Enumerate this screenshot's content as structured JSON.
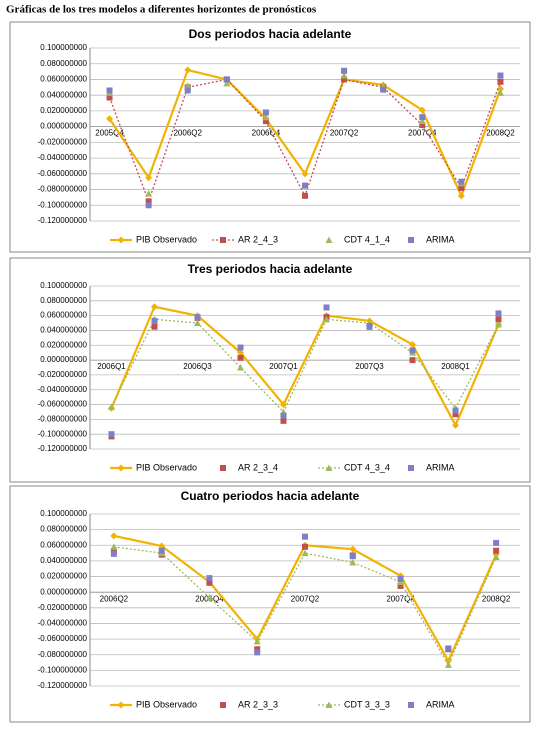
{
  "page_title": "Gráficas de los tres modelos a diferentes horizontes de pronósticos",
  "chart_data": [
    {
      "type": "line",
      "title": "Dos periodos hacia adelante",
      "categories": [
        "2005Q4",
        null,
        "2006Q2",
        null,
        "2006Q4",
        null,
        "2007Q2",
        null,
        "2007Q4",
        null,
        "2008Q2"
      ],
      "series": [
        {
          "name": "PIB Observado",
          "color": "#f2b200",
          "line_style": "solid",
          "marker": "diamond",
          "values": [
            0.01,
            -0.065,
            0.072,
            0.06,
            0.01,
            -0.06,
            0.06,
            0.053,
            0.021,
            -0.088,
            0.048
          ]
        },
        {
          "name": "AR 2_4_3",
          "color": "#c0504d",
          "line_style": "dotted",
          "marker": "square",
          "values": [
            0.037,
            -0.095,
            0.05,
            0.06,
            0.007,
            -0.088,
            0.06,
            0.05,
            0.002,
            -0.078,
            0.057
          ]
        },
        {
          "name": "CDT 4_1_4",
          "color": "#9bbb59",
          "line_style": "none",
          "marker": "triangle",
          "values": [
            0.043,
            -0.085,
            0.052,
            0.055,
            0.012,
            -0.075,
            0.065,
            0.052,
            0.007,
            -0.072,
            0.043
          ]
        },
        {
          "name": "ARIMA",
          "color": "#7f7fc8",
          "line_style": "none",
          "marker": "square",
          "values": [
            0.046,
            -0.1,
            0.046,
            0.06,
            0.018,
            -0.075,
            0.071,
            0.047,
            0.012,
            -0.07,
            0.065
          ]
        }
      ],
      "ylim": [
        -0.12,
        0.1
      ],
      "yticks": [
        {
          "value": 0.1,
          "label": "0.100000000"
        },
        {
          "value": 0.08,
          "label": "0.080000000"
        },
        {
          "value": 0.06,
          "label": "0.060000000"
        },
        {
          "value": 0.04,
          "label": "0.040000000"
        },
        {
          "value": 0.02,
          "label": "0.020000000"
        },
        {
          "value": 0,
          "label": "0.000000000"
        },
        {
          "value": -0.02,
          "label": "-0.020000000"
        },
        {
          "value": -0.04,
          "label": "-0.040000000"
        },
        {
          "value": -0.06,
          "label": "-0.060000000"
        },
        {
          "value": -0.08,
          "label": "-0.080000000"
        },
        {
          "value": -0.1,
          "label": "-0.100000000"
        },
        {
          "value": -0.12,
          "label": "-0.120000000"
        }
      ],
      "grid": true,
      "legend": "bottom"
    },
    {
      "type": "line",
      "title": "Tres periodos hacia adelante",
      "categories": [
        "2006Q1",
        null,
        "2006Q3",
        null,
        "2007Q1",
        null,
        "2007Q3",
        null,
        "2008Q1",
        null
      ],
      "series": [
        {
          "name": "PIB Observado",
          "color": "#f2b200",
          "line_style": "solid",
          "marker": "diamond",
          "values": [
            -0.065,
            0.072,
            0.06,
            0.01,
            -0.06,
            0.06,
            0.053,
            0.021,
            -0.088,
            0.048
          ]
        },
        {
          "name": "AR 2_3_4",
          "color": "#c0504d",
          "line_style": "none",
          "marker": "square",
          "values": [
            -0.103,
            0.045,
            0.057,
            0.003,
            -0.082,
            0.058,
            0.045,
            0.0,
            -0.073,
            0.055
          ]
        },
        {
          "name": "CDT 4_3_4",
          "color": "#9bbb59",
          "line_style": "dotted",
          "marker": "triangle",
          "values": [
            -0.063,
            0.055,
            0.05,
            -0.01,
            -0.07,
            0.055,
            0.05,
            0.01,
            -0.065,
            0.048
          ]
        },
        {
          "name": "ARIMA",
          "color": "#7f7fc8",
          "line_style": "none",
          "marker": "square",
          "values": [
            -0.1,
            0.053,
            0.058,
            0.017,
            -0.075,
            0.071,
            0.046,
            0.013,
            -0.068,
            0.063
          ]
        }
      ],
      "ylim": [
        -0.12,
        0.1
      ],
      "yticks": [
        {
          "value": 0.1,
          "label": "0.100000000"
        },
        {
          "value": 0.08,
          "label": "0.080000000"
        },
        {
          "value": 0.06,
          "label": "0.060000000"
        },
        {
          "value": 0.04,
          "label": "0.040000000"
        },
        {
          "value": 0.02,
          "label": "0.020000000"
        },
        {
          "value": 0,
          "label": "0.000000000"
        },
        {
          "value": -0.02,
          "label": "-0.020000000"
        },
        {
          "value": -0.04,
          "label": "-0.040000000"
        },
        {
          "value": -0.06,
          "label": "-0.060000000"
        },
        {
          "value": -0.08,
          "label": "-0.080000000"
        },
        {
          "value": -0.1,
          "label": "-0.100000000"
        },
        {
          "value": -0.12,
          "label": "-0.120000000"
        }
      ],
      "grid": true,
      "legend": "bottom"
    },
    {
      "type": "line",
      "title": "Cuatro periodos hacia adelante",
      "categories": [
        "2006Q2",
        null,
        "2006Q4",
        null,
        "2007Q2",
        null,
        "2007Q4",
        null,
        "2008Q2"
      ],
      "series": [
        {
          "name": "PIB Observado",
          "color": "#f2b200",
          "line_style": "solid",
          "marker": "diamond",
          "values": [
            0.072,
            0.059,
            0.013,
            -0.06,
            0.06,
            0.055,
            0.021,
            -0.088,
            0.048
          ]
        },
        {
          "name": "AR 2_3_3",
          "color": "#c0504d",
          "line_style": "none",
          "marker": "square",
          "values": [
            0.053,
            0.048,
            0.012,
            -0.073,
            0.058,
            0.047,
            0.008,
            -0.073,
            0.053
          ]
        },
        {
          "name": "CDT 3_3_3",
          "color": "#9bbb59",
          "line_style": "dotted",
          "marker": "triangle",
          "values": [
            0.058,
            0.05,
            -0.007,
            -0.063,
            0.05,
            0.038,
            0.013,
            -0.093,
            0.045
          ]
        },
        {
          "name": "ARIMA",
          "color": "#7f7fc8",
          "line_style": "none",
          "marker": "square",
          "values": [
            0.049,
            0.053,
            0.018,
            -0.077,
            0.071,
            0.046,
            0.017,
            -0.072,
            0.063
          ]
        }
      ],
      "ylim": [
        -0.12,
        0.1
      ],
      "yticks": [
        {
          "value": 0.1,
          "label": "0.100000000"
        },
        {
          "value": 0.08,
          "label": "0.080000000"
        },
        {
          "value": 0.06,
          "label": "0.060000000"
        },
        {
          "value": 0.04,
          "label": "0.040000000"
        },
        {
          "value": 0.02,
          "label": "0.020000000"
        },
        {
          "value": 0,
          "label": "0.000000000"
        },
        {
          "value": -0.02,
          "label": "-0.020000000"
        },
        {
          "value": -0.04,
          "label": "-0.040000000"
        },
        {
          "value": -0.06,
          "label": "-0.060000000"
        },
        {
          "value": -0.08,
          "label": "-0.080000000"
        },
        {
          "value": -0.1,
          "label": "-0.100000000"
        },
        {
          "value": -0.12,
          "label": "-0.120000000"
        }
      ],
      "grid": true,
      "legend": "bottom"
    }
  ]
}
